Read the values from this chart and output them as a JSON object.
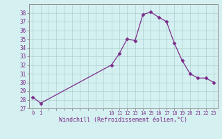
{
  "x": [
    0,
    1,
    10,
    11,
    12,
    13,
    14,
    15,
    16,
    17,
    18,
    19,
    20,
    21,
    22,
    23
  ],
  "y": [
    28.3,
    27.6,
    32.0,
    33.3,
    35.0,
    34.8,
    37.8,
    38.1,
    37.5,
    37.0,
    34.5,
    32.5,
    31.0,
    30.5,
    30.5,
    30.0
  ],
  "line_color": "#7b2d8b",
  "marker": "D",
  "marker_size": 2.5,
  "bg_color": "#d4f0f0",
  "grid_color": "#b0d0d0",
  "xlabel": "Windchill (Refroidissement éolien,°C)",
  "xlabel_color": "#7b2d8b",
  "tick_color": "#7b2d8b",
  "ylim": [
    27,
    39
  ],
  "yticks": [
    27,
    28,
    29,
    30,
    31,
    32,
    33,
    34,
    35,
    36,
    37,
    38
  ]
}
